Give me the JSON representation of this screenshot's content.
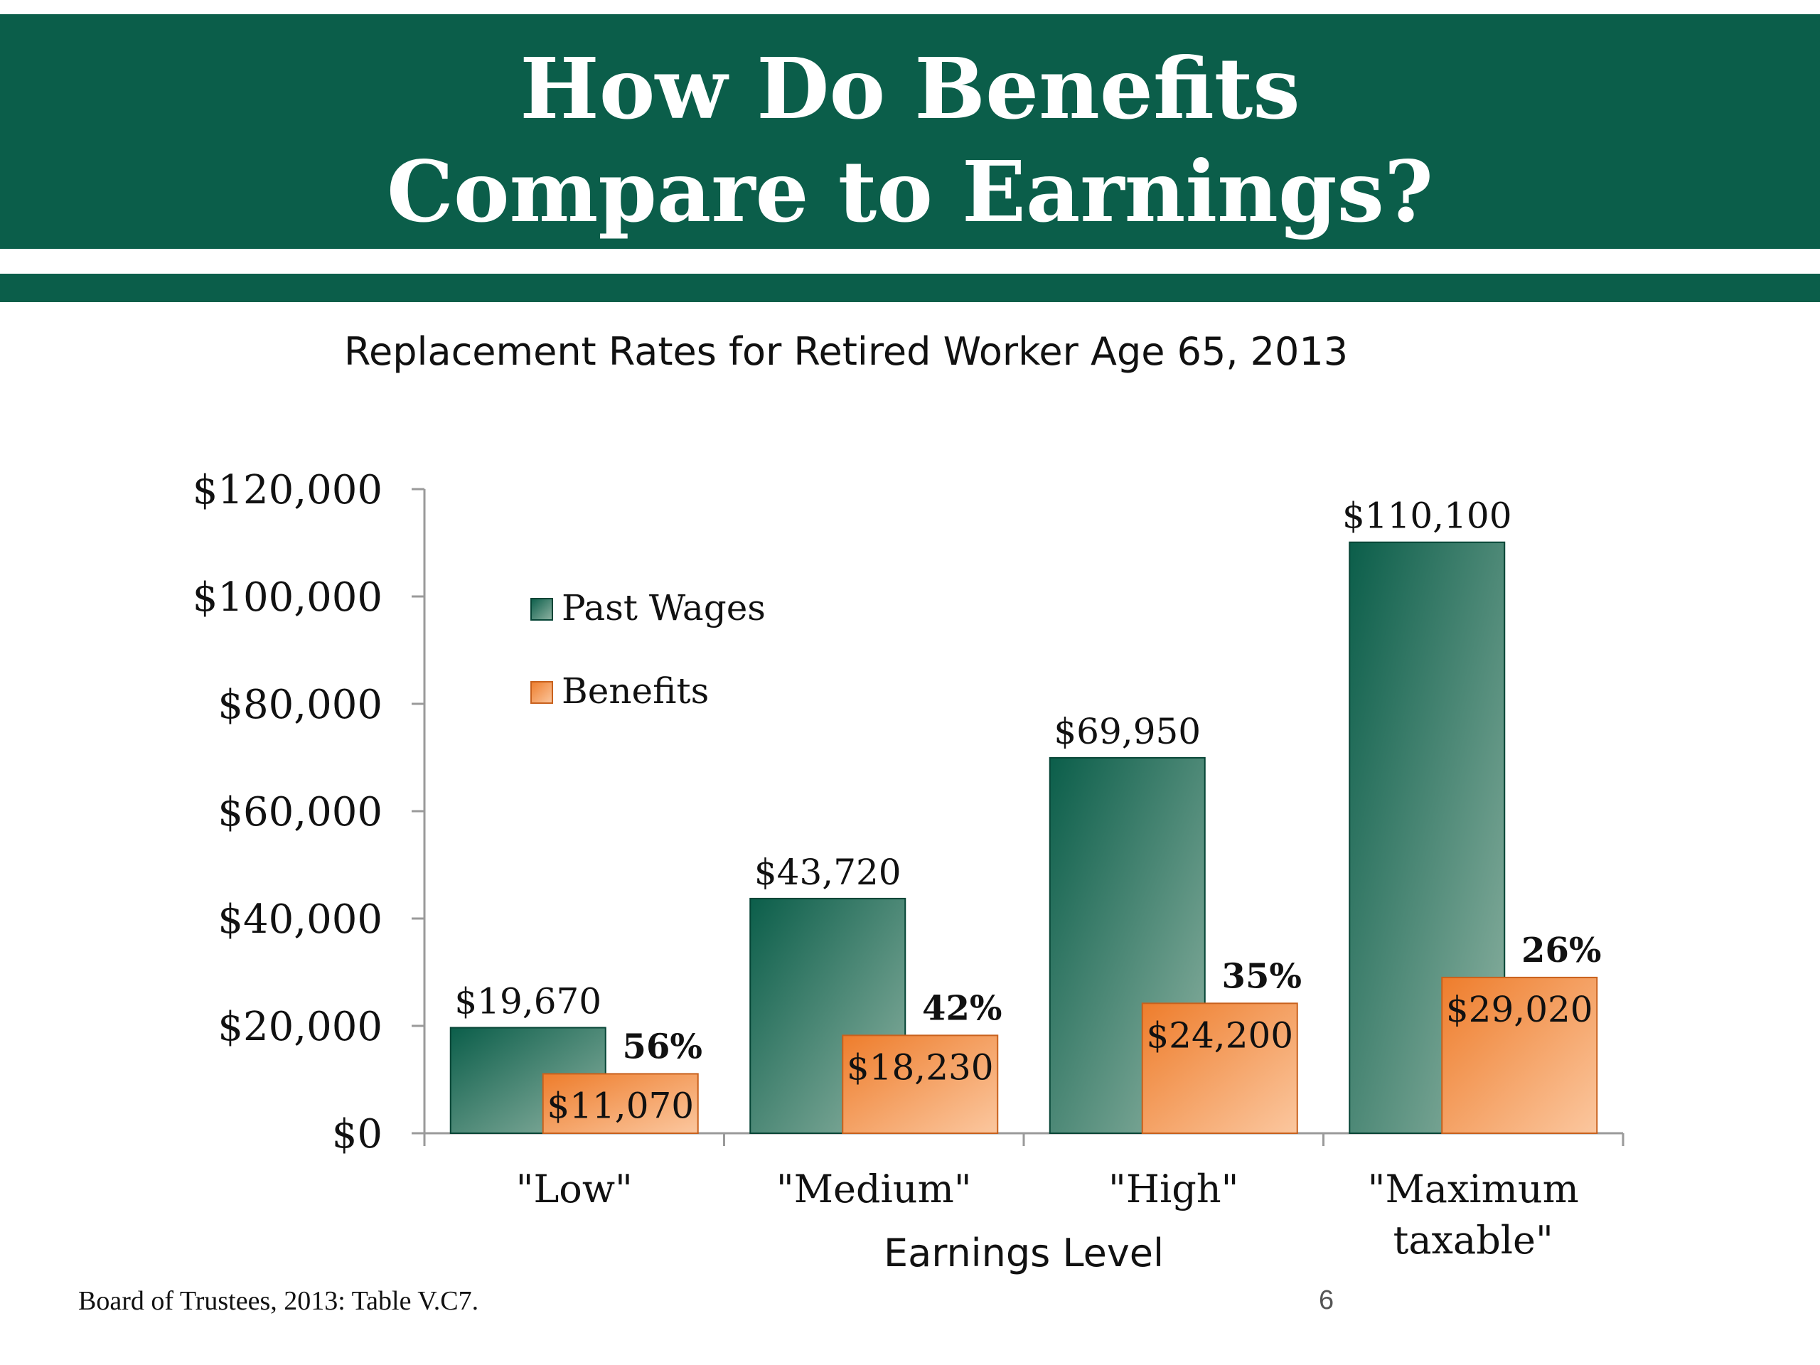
{
  "slide": {
    "title": "How Do Benefits\nCompare to Earnings?",
    "source": "Board of Trustees, 2013: Table V.C7.",
    "page_number": "6"
  },
  "colors": {
    "band": "#0b5e4a",
    "past_wages_dark": "#0b5e4a",
    "past_wages_light": "#8fb3a3",
    "benefits_dark": "#ee7d2c",
    "benefits_light": "#fbc79f"
  },
  "chart_data": {
    "type": "bar",
    "title": "Replacement Rates for Retired Worker Age 65, 2013",
    "xlabel": "Earnings Level",
    "ylabel": "",
    "ylim": [
      0,
      120000
    ],
    "yticks": [
      "$0",
      "$20,000",
      "$40,000",
      "$60,000",
      "$80,000",
      "$100,000",
      "$120,000"
    ],
    "categories": [
      [
        "\"Low\""
      ],
      [
        "\"Medium\""
      ],
      [
        "\"High\""
      ],
      [
        "\"Maximum",
        "taxable\""
      ]
    ],
    "series": [
      {
        "name": "Past Wages",
        "values": [
          19670,
          43720,
          69950,
          110100
        ],
        "labels": [
          "$19,670",
          "$43,720",
          "$69,950",
          "$110,100"
        ]
      },
      {
        "name": "Benefits",
        "values": [
          11070,
          18230,
          24200,
          29020
        ],
        "labels": [
          "$11,070",
          "$18,230",
          "$24,200",
          "$29,020"
        ]
      }
    ],
    "replacement_rates": [
      "56%",
      "42%",
      "35%",
      "26%"
    ],
    "legend": "upper-left inside plot",
    "grid": false
  }
}
